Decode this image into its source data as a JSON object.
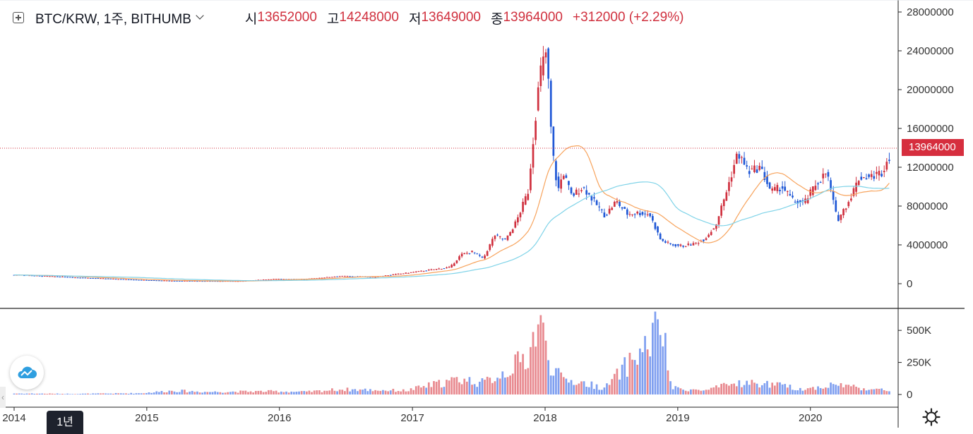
{
  "header": {
    "symbol": "BTC/KRW, 1주, BITHUMB",
    "open_label": "시",
    "open": "13652000",
    "high_label": "고",
    "high": "14248000",
    "low_label": "저",
    "low": "13649000",
    "close_label": "종",
    "close": "13964000",
    "change": "+312000 (+2.29%)"
  },
  "timeframe_button": "1년",
  "colors": {
    "up": "#d0313f",
    "down": "#2962ff",
    "ma_short": "#f7a35c",
    "ma_long": "#7fd3e8"
  },
  "chart_data": {
    "type": "candlestick",
    "price_axis": {
      "ticks": [
        0,
        4000000,
        8000000,
        12000000,
        16000000,
        20000000,
        24000000,
        28000000
      ],
      "range": [
        -1500000,
        28500000
      ]
    },
    "volume_axis": {
      "ticks": [
        {
          "v": 0,
          "label": "0"
        },
        {
          "v": 250000,
          "label": "250K"
        },
        {
          "v": 500000,
          "label": "500K"
        }
      ],
      "range": [
        0,
        600000
      ]
    },
    "x_axis": {
      "labels": [
        "2014",
        "2015",
        "2016",
        "2017",
        "2018",
        "2019",
        "2020"
      ],
      "start": "2014-01",
      "end": "2020-08"
    },
    "last_price": 13964000,
    "last_price_label": "13964000",
    "close_series": [
      [
        "2014-01",
        900000
      ],
      [
        "2014-03",
        800000
      ],
      [
        "2014-06",
        650000
      ],
      [
        "2014-09",
        520000
      ],
      [
        "2014-12",
        380000
      ],
      [
        "2015-03",
        300000
      ],
      [
        "2015-06",
        280000
      ],
      [
        "2015-09",
        270000
      ],
      [
        "2015-12",
        480000
      ],
      [
        "2016-03",
        480000
      ],
      [
        "2016-06",
        780000
      ],
      [
        "2016-09",
        690000
      ],
      [
        "2016-12",
        1100000
      ],
      [
        "2017-02",
        1400000
      ],
      [
        "2017-04",
        1700000
      ],
      [
        "2017-05",
        3000000
      ],
      [
        "2017-06",
        3300000
      ],
      [
        "2017-07",
        2600000
      ],
      [
        "2017-08",
        5000000
      ],
      [
        "2017-09",
        4500000
      ],
      [
        "2017-10",
        6500000
      ],
      [
        "2017-11",
        9500000
      ],
      [
        "2017-12-10",
        19000000
      ],
      [
        "2017-12-20",
        22000000
      ],
      [
        "2018-01-05",
        24000000
      ],
      [
        "2018-01-20",
        14000000
      ],
      [
        "2018-02-05",
        9500000
      ],
      [
        "2018-02-20",
        11500000
      ],
      [
        "2018-03",
        9000000
      ],
      [
        "2018-04",
        10000000
      ],
      [
        "2018-05",
        8500000
      ],
      [
        "2018-06",
        7000000
      ],
      [
        "2018-07",
        8500000
      ],
      [
        "2018-08",
        7200000
      ],
      [
        "2018-09",
        7300000
      ],
      [
        "2018-10",
        7200000
      ],
      [
        "2018-11",
        4500000
      ],
      [
        "2018-12",
        4000000
      ],
      [
        "2019-01",
        3900000
      ],
      [
        "2019-02",
        4100000
      ],
      [
        "2019-03",
        4600000
      ],
      [
        "2019-04",
        6000000
      ],
      [
        "2019-05",
        9500000
      ],
      [
        "2019-06",
        13500000
      ],
      [
        "2019-07",
        11500000
      ],
      [
        "2019-08",
        12000000
      ],
      [
        "2019-09",
        9500000
      ],
      [
        "2019-10",
        10000000
      ],
      [
        "2019-11",
        8500000
      ],
      [
        "2019-12",
        8300000
      ],
      [
        "2020-01",
        10200000
      ],
      [
        "2020-02",
        11500000
      ],
      [
        "2020-03",
        6500000
      ],
      [
        "2020-04",
        8500000
      ],
      [
        "2020-05",
        11000000
      ],
      [
        "2020-06",
        11000000
      ],
      [
        "2020-07",
        11500000
      ],
      [
        "2020-08",
        13964000
      ]
    ],
    "volume_series": [
      [
        "2014-01",
        8000
      ],
      [
        "2014-06",
        5000
      ],
      [
        "2014-12",
        10000
      ],
      [
        "2015-03",
        30000
      ],
      [
        "2015-06",
        20000
      ],
      [
        "2015-12",
        25000
      ],
      [
        "2016-03",
        20000
      ],
      [
        "2016-06",
        40000
      ],
      [
        "2016-12",
        30000
      ],
      [
        "2017-02",
        70000
      ],
      [
        "2017-05",
        120000
      ],
      [
        "2017-07",
        90000
      ],
      [
        "2017-09",
        180000
      ],
      [
        "2017-11",
        300000
      ],
      [
        "2017-12-15",
        580000
      ],
      [
        "2018-01-15",
        250000
      ],
      [
        "2018-02-15",
        120000
      ],
      [
        "2018-04",
        90000
      ],
      [
        "2018-06",
        50000
      ],
      [
        "2018-08",
        230000
      ],
      [
        "2018-10",
        400000
      ],
      [
        "2018-11",
        570000
      ],
      [
        "2018-12",
        50000
      ],
      [
        "2019-03",
        30000
      ],
      [
        "2019-06",
        90000
      ],
      [
        "2019-09",
        80000
      ],
      [
        "2019-12",
        40000
      ],
      [
        "2020-03",
        80000
      ],
      [
        "2020-06",
        40000
      ],
      [
        "2020-08",
        30000
      ]
    ]
  }
}
